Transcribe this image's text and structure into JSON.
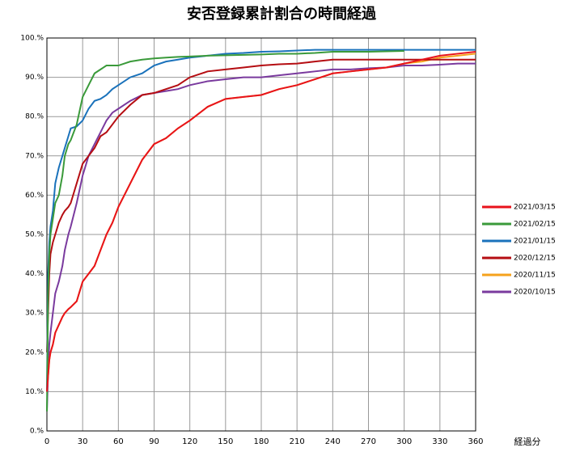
{
  "chart_data": {
    "type": "line",
    "title": "安否登録累計割合の時間経過",
    "x_label": "経過分",
    "x": [
      0,
      1,
      2,
      3,
      5,
      7,
      10,
      13,
      15,
      18,
      20,
      25,
      30,
      35,
      40,
      45,
      50,
      55,
      60,
      70,
      80,
      90,
      100,
      110,
      120,
      135,
      150,
      165,
      180,
      195,
      210,
      225,
      240,
      255,
      270,
      285,
      300,
      315,
      330,
      345,
      360
    ],
    "xlim": [
      0,
      360
    ],
    "xticks": [
      0,
      30,
      60,
      90,
      120,
      150,
      180,
      210,
      240,
      270,
      300,
      330,
      360
    ],
    "ylim": [
      0,
      100
    ],
    "yticks": [
      {
        "value": 0,
        "label": "0.%"
      },
      {
        "value": 10,
        "label": "10.%"
      },
      {
        "value": 20,
        "label": "20.%"
      },
      {
        "value": 30,
        "label": "30.%"
      },
      {
        "value": 40,
        "label": "40.%"
      },
      {
        "value": 50,
        "label": "50.%"
      },
      {
        "value": 60,
        "label": "60.%"
      },
      {
        "value": 70,
        "label": "70.%"
      },
      {
        "value": 80,
        "label": "80.%"
      },
      {
        "value": 90,
        "label": "90.%"
      },
      {
        "value": 100,
        "label": "100.%"
      }
    ],
    "grid": true,
    "legend": "right",
    "series": [
      {
        "name": "2021/03/15",
        "color": "#e8121b",
        "values": [
          10,
          14,
          18,
          20,
          22,
          25,
          27,
          29,
          30,
          31,
          31.5,
          33,
          38,
          40,
          42,
          46,
          50,
          53,
          57,
          63,
          69,
          73,
          74.5,
          77,
          79,
          82.5,
          84.5,
          85,
          85.5,
          87,
          88,
          89.5,
          91,
          91.5,
          92,
          92.5,
          93.5,
          94.5,
          95.5,
          96,
          96.5
        ]
      },
      {
        "name": "2021/02/15",
        "color": "#3a9a3a",
        "values": [
          5,
          35,
          45,
          50,
          54,
          58,
          60,
          65,
          70,
          73,
          74,
          78,
          85,
          88,
          91,
          92,
          93,
          93,
          93,
          94,
          94.5,
          94.8,
          95,
          95.2,
          95.3,
          95.5,
          95.6,
          95.7,
          95.8,
          96,
          96,
          96.2,
          96.5,
          96.5,
          96.5,
          96.6,
          96.7,
          null,
          null,
          null,
          null
        ]
      },
      {
        "name": "2021/01/15",
        "color": "#1a72bb",
        "values": [
          10,
          40,
          48,
          52,
          56,
          63,
          67,
          70,
          72,
          75,
          77,
          77.5,
          79,
          82,
          84,
          84.5,
          85.5,
          87,
          88,
          90,
          91,
          93,
          94,
          94.5,
          95,
          95.5,
          96,
          96.2,
          96.5,
          96.6,
          96.8,
          97,
          97,
          97,
          97,
          97,
          97,
          97,
          97,
          97,
          97
        ]
      },
      {
        "name": "2020/12/15",
        "color": "#b50d12",
        "values": [
          20,
          30,
          40,
          45,
          48,
          50,
          53,
          55,
          56,
          57,
          58,
          63,
          68,
          70,
          72,
          75,
          76,
          78,
          80,
          83,
          85.5,
          86,
          87,
          88,
          90,
          91.5,
          92,
          92.5,
          93,
          93.3,
          93.5,
          94,
          94.5,
          94.5,
          94.5,
          94.5,
          94.5,
          94.5,
          94.5,
          94.5,
          94.5
        ]
      },
      {
        "name": "2020/11/15",
        "color": "#f5a21c",
        "values": [
          10,
          14,
          18,
          20,
          22,
          25,
          27,
          29,
          30,
          31,
          31.5,
          33,
          38,
          40,
          42,
          46,
          50,
          53,
          57,
          63,
          69,
          73,
          74.5,
          77,
          79,
          82.5,
          84.5,
          85,
          85.5,
          87,
          88,
          89.5,
          91,
          91.5,
          92,
          92.5,
          93.5,
          94,
          95,
          95.5,
          96
        ]
      },
      {
        "name": "2020/10/15",
        "color": "#7a3a9e",
        "values": [
          5,
          15,
          22,
          25,
          30,
          35,
          38,
          42,
          46,
          50,
          52,
          58,
          65,
          70,
          73,
          76,
          79,
          81,
          82,
          84,
          85.5,
          86,
          86.5,
          87,
          88,
          89,
          89.5,
          90,
          90,
          90.5,
          91,
          91.5,
          92,
          92,
          92.3,
          92.5,
          93,
          93,
          93.2,
          93.5,
          93.5
        ]
      }
    ]
  }
}
